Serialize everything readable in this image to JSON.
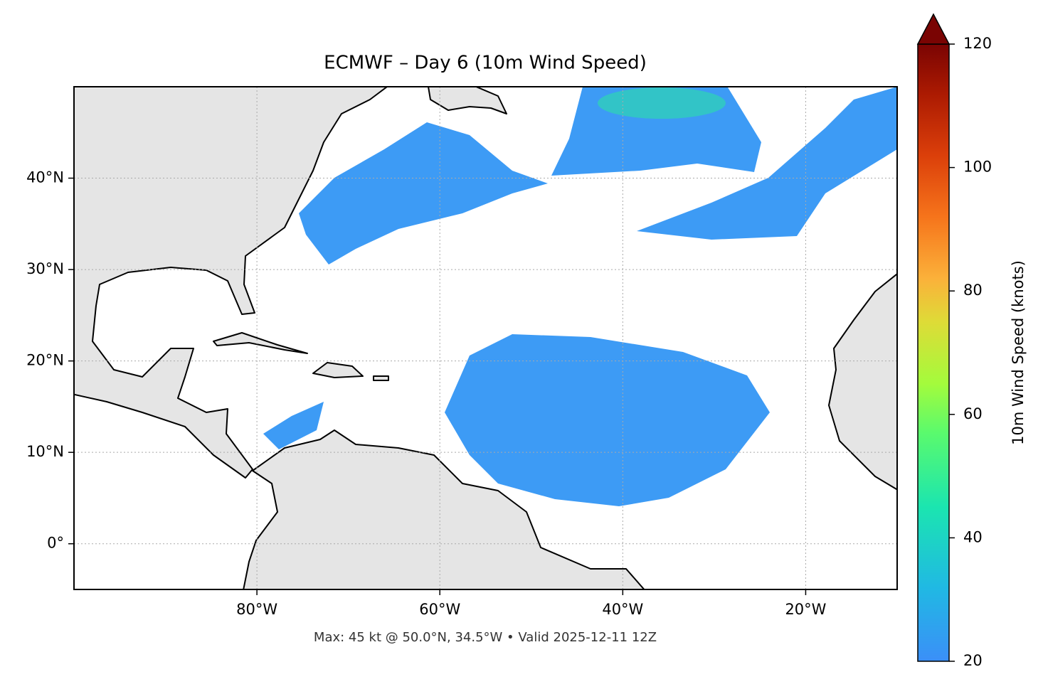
{
  "chart_data": {
    "type": "map",
    "title": "ECMWF – Day 6 (10m Wind Speed)",
    "footnote": "Max: 45 kt @ 50.0°N, 34.5°W • Valid 2025-12-11 12Z",
    "xlim": [
      -100,
      -10
    ],
    "ylim": [
      -5,
      50
    ],
    "xticks": [
      {
        "value": -80,
        "label": "80°W"
      },
      {
        "value": -60,
        "label": "60°W"
      },
      {
        "value": -40,
        "label": "40°W"
      },
      {
        "value": -20,
        "label": "20°W"
      }
    ],
    "yticks": [
      {
        "value": 0,
        "label": "0°"
      },
      {
        "value": 10,
        "label": "10°N"
      },
      {
        "value": 20,
        "label": "20°N"
      },
      {
        "value": 30,
        "label": "30°N"
      },
      {
        "value": 40,
        "label": "40°N"
      }
    ],
    "grid": true,
    "colorbar": {
      "label": "10m Wind Speed (knots)",
      "lim": [
        20,
        120
      ],
      "ticks": [
        20,
        40,
        60,
        80,
        100,
        120
      ]
    }
  }
}
